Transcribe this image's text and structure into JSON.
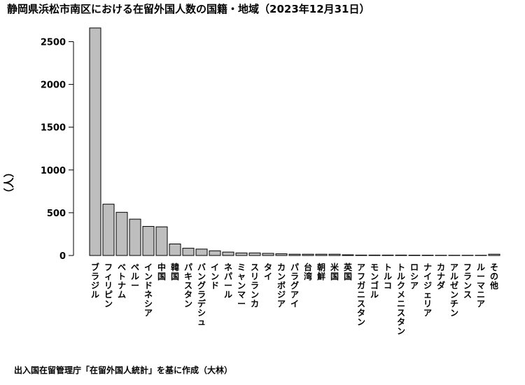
{
  "chart_data": {
    "type": "bar",
    "title": "静岡県浜松市南区における在留外国人数の国籍・地域（2023年12月31日）",
    "ylabel": "（人）",
    "xlabel": "",
    "source": "出入国在留管理庁「在留外国人統計」を基に作成（大林）",
    "ylim": [
      0,
      2700
    ],
    "yticks": [
      0,
      500,
      1000,
      1500,
      2000,
      2500
    ],
    "grid": false,
    "bar_color": "#bebebe",
    "categories": [
      "ブラジル",
      "フィリピン",
      "ベトナム",
      "ペルー",
      "インドネシア",
      "中国",
      "韓国",
      "パキスタン",
      "バングラデシュ",
      "インド",
      "ネパール",
      "ミャンマー",
      "スリランカ",
      "タイ",
      "カンボジア",
      "パラグアイ",
      "台湾",
      "朝鮮",
      "米国",
      "英国",
      "アフガニスタン",
      "モンゴル",
      "トルコ",
      "トルクメニスタン",
      "ロシア",
      "ナイジェリア",
      "カナダ",
      "アルゼンチン",
      "フランス",
      "ルーマニア",
      "その他"
    ],
    "values": [
      2660,
      600,
      505,
      425,
      340,
      335,
      135,
      85,
      75,
      55,
      40,
      30,
      30,
      25,
      20,
      15,
      15,
      15,
      15,
      8,
      5,
      5,
      5,
      5,
      4,
      4,
      3,
      3,
      3,
      3,
      15
    ]
  }
}
